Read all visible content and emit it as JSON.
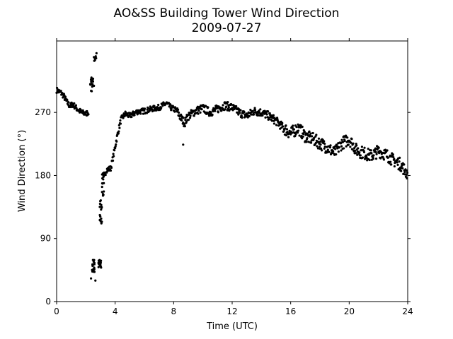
{
  "chart_data": {
    "type": "scatter",
    "title": "AO&SS Building Tower Wind Direction",
    "subtitle": "2009-07-27",
    "xlabel": "Time (UTC)",
    "ylabel": "Wind Direction (°)",
    "xlim": [
      0,
      24
    ],
    "ylim": [
      0,
      372
    ],
    "xticks": [
      0,
      4,
      8,
      12,
      16,
      20,
      24
    ],
    "yticks": [
      0,
      90,
      180,
      270
    ],
    "grid": false,
    "marker_color": "#000000",
    "series": [
      {
        "anchors": [
          [
            0.0,
            302
          ],
          [
            0.3,
            298
          ],
          [
            0.5,
            293
          ],
          [
            0.7,
            285
          ],
          [
            0.9,
            279
          ],
          [
            1.1,
            282
          ],
          [
            1.4,
            275
          ],
          [
            1.7,
            270
          ],
          [
            2.0,
            268
          ],
          [
            2.2,
            271
          ],
          [
            2.55,
            345
          ],
          [
            2.75,
            352
          ],
          [
            3.2,
            175
          ],
          [
            3.4,
            188
          ],
          [
            3.7,
            190
          ],
          [
            3.9,
            210
          ],
          [
            4.1,
            232
          ],
          [
            4.4,
            260
          ],
          [
            4.7,
            268
          ],
          [
            5.0,
            265
          ],
          [
            5.5,
            271
          ],
          [
            6.0,
            272
          ],
          [
            6.5,
            275
          ],
          [
            7.0,
            277
          ],
          [
            7.5,
            283
          ],
          [
            7.8,
            277
          ],
          [
            8.2,
            273
          ],
          [
            8.5,
            262
          ],
          [
            8.75,
            255
          ],
          [
            9.0,
            265
          ],
          [
            9.5,
            272
          ],
          [
            10.0,
            276
          ],
          [
            10.5,
            270
          ],
          [
            11.0,
            275
          ],
          [
            11.5,
            280
          ],
          [
            12.0,
            277
          ],
          [
            12.5,
            270
          ],
          [
            13.0,
            265
          ],
          [
            13.5,
            272
          ],
          [
            14.0,
            270
          ],
          [
            14.5,
            265
          ],
          [
            15.0,
            258
          ],
          [
            15.5,
            248
          ],
          [
            16.0,
            240
          ],
          [
            16.5,
            248
          ],
          [
            17.0,
            236
          ],
          [
            17.5,
            232
          ],
          [
            18.0,
            226
          ],
          [
            18.5,
            220
          ],
          [
            19.0,
            212
          ],
          [
            19.5,
            226
          ],
          [
            20.0,
            232
          ],
          [
            20.5,
            216
          ],
          [
            21.0,
            212
          ],
          [
            21.5,
            208
          ],
          [
            22.0,
            215
          ],
          [
            22.5,
            210
          ],
          [
            23.0,
            202
          ],
          [
            23.5,
            196
          ],
          [
            24.0,
            182
          ]
        ],
        "clusters": [
          {
            "x": [
              2.4,
              2.6
            ],
            "y": [
              42,
              60
            ]
          },
          {
            "x": [
              2.85,
              3.05
            ],
            "y": [
              48,
              60
            ]
          },
          {
            "x": [
              2.95,
              3.1
            ],
            "y": [
              108,
              145
            ]
          },
          {
            "x": [
              2.3,
              2.5
            ],
            "y": [
              300,
              320
            ]
          }
        ],
        "isolated_points": [
          [
            2.35,
            33
          ],
          [
            2.65,
            30
          ],
          [
            8.65,
            224
          ],
          [
            2.55,
            308
          ]
        ]
      }
    ]
  }
}
